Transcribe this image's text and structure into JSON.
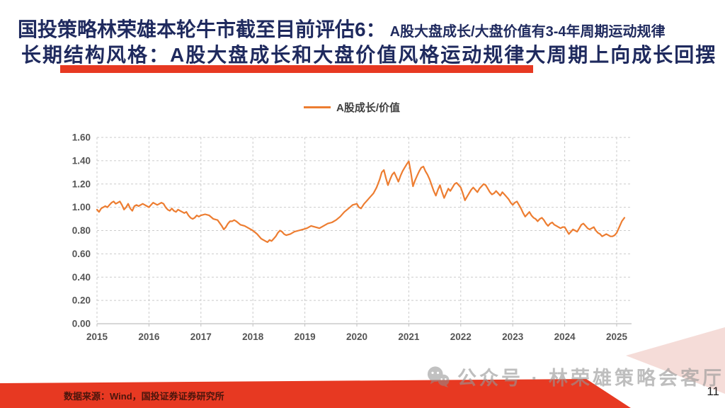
{
  "header": {
    "title_main": "国投策略林荣雄本轮牛市截至目前评估6：",
    "title_annot": "A股大盘成长/大盘价值有3-4年周期运动规律",
    "title_line2": "长期结构风格：A股大盘成长和大盘价值风格运动规律大周期上向成长回摆"
  },
  "chart_data": {
    "type": "line",
    "title": "",
    "legend": [
      "A股成长/价值"
    ],
    "legend_position": "top-center",
    "grid": true,
    "xlabel": "",
    "ylabel": "",
    "x_ticks": [
      "2015",
      "2016",
      "2017",
      "2018",
      "2019",
      "2020",
      "2021",
      "2022",
      "2023",
      "2024",
      "2025"
    ],
    "y_ticks": [
      "0.00",
      "0.20",
      "0.40",
      "0.60",
      "0.80",
      "1.00",
      "1.20",
      "1.40",
      "1.60"
    ],
    "x_range": [
      2015,
      2025
    ],
    "ylim": [
      0,
      1.6
    ],
    "series": [
      {
        "name": "A股成长/价值",
        "color": "#ED7D31",
        "points": [
          [
            2015.0,
            0.98
          ],
          [
            2015.04,
            0.96
          ],
          [
            2015.08,
            0.99
          ],
          [
            2015.12,
            1.0
          ],
          [
            2015.16,
            1.01
          ],
          [
            2015.2,
            1.0
          ],
          [
            2015.24,
            1.02
          ],
          [
            2015.28,
            1.04
          ],
          [
            2015.32,
            1.05
          ],
          [
            2015.36,
            1.03
          ],
          [
            2015.4,
            1.04
          ],
          [
            2015.44,
            1.05
          ],
          [
            2015.48,
            1.02
          ],
          [
            2015.52,
            0.98
          ],
          [
            2015.56,
            1.0
          ],
          [
            2015.6,
            1.03
          ],
          [
            2015.64,
            0.99
          ],
          [
            2015.68,
            0.97
          ],
          [
            2015.72,
            1.01
          ],
          [
            2015.76,
            1.02
          ],
          [
            2015.8,
            1.01
          ],
          [
            2015.84,
            1.02
          ],
          [
            2015.88,
            1.03
          ],
          [
            2015.92,
            1.02
          ],
          [
            2015.96,
            1.01
          ],
          [
            2016.0,
            1.0
          ],
          [
            2016.04,
            1.02
          ],
          [
            2016.08,
            1.04
          ],
          [
            2016.12,
            1.03
          ],
          [
            2016.16,
            1.02
          ],
          [
            2016.2,
            1.03
          ],
          [
            2016.24,
            1.04
          ],
          [
            2016.28,
            1.03
          ],
          [
            2016.32,
            1.0
          ],
          [
            2016.36,
            0.98
          ],
          [
            2016.4,
            0.97
          ],
          [
            2016.44,
            0.99
          ],
          [
            2016.48,
            0.97
          ],
          [
            2016.52,
            0.96
          ],
          [
            2016.56,
            0.98
          ],
          [
            2016.6,
            0.97
          ],
          [
            2016.64,
            0.96
          ],
          [
            2016.68,
            0.95
          ],
          [
            2016.72,
            0.96
          ],
          [
            2016.76,
            0.93
          ],
          [
            2016.8,
            0.91
          ],
          [
            2016.84,
            0.9
          ],
          [
            2016.88,
            0.91
          ],
          [
            2016.92,
            0.93
          ],
          [
            2016.96,
            0.92
          ],
          [
            2017.0,
            0.93
          ],
          [
            2017.08,
            0.94
          ],
          [
            2017.16,
            0.93
          ],
          [
            2017.24,
            0.9
          ],
          [
            2017.32,
            0.89
          ],
          [
            2017.4,
            0.84
          ],
          [
            2017.44,
            0.81
          ],
          [
            2017.48,
            0.83
          ],
          [
            2017.52,
            0.86
          ],
          [
            2017.56,
            0.88
          ],
          [
            2017.6,
            0.88
          ],
          [
            2017.64,
            0.89
          ],
          [
            2017.68,
            0.88
          ],
          [
            2017.76,
            0.85
          ],
          [
            2017.84,
            0.84
          ],
          [
            2017.92,
            0.82
          ],
          [
            2018.0,
            0.8
          ],
          [
            2018.08,
            0.77
          ],
          [
            2018.16,
            0.73
          ],
          [
            2018.24,
            0.71
          ],
          [
            2018.28,
            0.7
          ],
          [
            2018.32,
            0.72
          ],
          [
            2018.36,
            0.71
          ],
          [
            2018.4,
            0.73
          ],
          [
            2018.44,
            0.75
          ],
          [
            2018.48,
            0.78
          ],
          [
            2018.52,
            0.8
          ],
          [
            2018.56,
            0.79
          ],
          [
            2018.6,
            0.77
          ],
          [
            2018.64,
            0.76
          ],
          [
            2018.72,
            0.77
          ],
          [
            2018.8,
            0.79
          ],
          [
            2018.88,
            0.8
          ],
          [
            2018.96,
            0.81
          ],
          [
            2019.04,
            0.82
          ],
          [
            2019.12,
            0.84
          ],
          [
            2019.2,
            0.83
          ],
          [
            2019.28,
            0.82
          ],
          [
            2019.36,
            0.84
          ],
          [
            2019.44,
            0.86
          ],
          [
            2019.52,
            0.87
          ],
          [
            2019.6,
            0.89
          ],
          [
            2019.68,
            0.92
          ],
          [
            2019.76,
            0.96
          ],
          [
            2019.84,
            0.99
          ],
          [
            2019.92,
            1.02
          ],
          [
            2020.0,
            1.03
          ],
          [
            2020.04,
            1.0
          ],
          [
            2020.08,
            0.99
          ],
          [
            2020.14,
            1.03
          ],
          [
            2020.2,
            1.06
          ],
          [
            2020.26,
            1.09
          ],
          [
            2020.32,
            1.12
          ],
          [
            2020.38,
            1.17
          ],
          [
            2020.44,
            1.24
          ],
          [
            2020.48,
            1.3
          ],
          [
            2020.52,
            1.32
          ],
          [
            2020.56,
            1.25
          ],
          [
            2020.6,
            1.19
          ],
          [
            2020.64,
            1.24
          ],
          [
            2020.68,
            1.28
          ],
          [
            2020.72,
            1.3
          ],
          [
            2020.76,
            1.26
          ],
          [
            2020.8,
            1.22
          ],
          [
            2020.84,
            1.27
          ],
          [
            2020.88,
            1.31
          ],
          [
            2020.92,
            1.34
          ],
          [
            2020.96,
            1.37
          ],
          [
            2021.0,
            1.395
          ],
          [
            2021.04,
            1.3
          ],
          [
            2021.08,
            1.18
          ],
          [
            2021.12,
            1.23
          ],
          [
            2021.16,
            1.27
          ],
          [
            2021.2,
            1.31
          ],
          [
            2021.24,
            1.34
          ],
          [
            2021.28,
            1.35
          ],
          [
            2021.32,
            1.31
          ],
          [
            2021.36,
            1.28
          ],
          [
            2021.4,
            1.24
          ],
          [
            2021.44,
            1.19
          ],
          [
            2021.48,
            1.14
          ],
          [
            2021.52,
            1.1
          ],
          [
            2021.56,
            1.15
          ],
          [
            2021.6,
            1.19
          ],
          [
            2021.64,
            1.13
          ],
          [
            2021.68,
            1.08
          ],
          [
            2021.72,
            1.12
          ],
          [
            2021.76,
            1.16
          ],
          [
            2021.8,
            1.14
          ],
          [
            2021.84,
            1.17
          ],
          [
            2021.88,
            1.2
          ],
          [
            2021.92,
            1.21
          ],
          [
            2021.96,
            1.19
          ],
          [
            2022.0,
            1.17
          ],
          [
            2022.04,
            1.12
          ],
          [
            2022.08,
            1.06
          ],
          [
            2022.12,
            1.09
          ],
          [
            2022.16,
            1.12
          ],
          [
            2022.2,
            1.15
          ],
          [
            2022.24,
            1.17
          ],
          [
            2022.28,
            1.15
          ],
          [
            2022.32,
            1.13
          ],
          [
            2022.36,
            1.16
          ],
          [
            2022.4,
            1.18
          ],
          [
            2022.44,
            1.2
          ],
          [
            2022.48,
            1.19
          ],
          [
            2022.52,
            1.16
          ],
          [
            2022.56,
            1.13
          ],
          [
            2022.6,
            1.11
          ],
          [
            2022.64,
            1.12
          ],
          [
            2022.68,
            1.14
          ],
          [
            2022.72,
            1.12
          ],
          [
            2022.76,
            1.1
          ],
          [
            2022.8,
            1.13
          ],
          [
            2022.84,
            1.11
          ],
          [
            2022.88,
            1.09
          ],
          [
            2022.92,
            1.07
          ],
          [
            2022.96,
            1.04
          ],
          [
            2023.0,
            1.02
          ],
          [
            2023.04,
            1.04
          ],
          [
            2023.08,
            1.05
          ],
          [
            2023.12,
            1.02
          ],
          [
            2023.16,
            0.99
          ],
          [
            2023.2,
            0.95
          ],
          [
            2023.24,
            0.92
          ],
          [
            2023.28,
            0.94
          ],
          [
            2023.32,
            0.96
          ],
          [
            2023.36,
            0.93
          ],
          [
            2023.4,
            0.91
          ],
          [
            2023.44,
            0.9
          ],
          [
            2023.48,
            0.88
          ],
          [
            2023.52,
            0.9
          ],
          [
            2023.56,
            0.91
          ],
          [
            2023.6,
            0.89
          ],
          [
            2023.64,
            0.86
          ],
          [
            2023.68,
            0.84
          ],
          [
            2023.72,
            0.86
          ],
          [
            2023.76,
            0.87
          ],
          [
            2023.8,
            0.85
          ],
          [
            2023.84,
            0.84
          ],
          [
            2023.88,
            0.83
          ],
          [
            2023.92,
            0.82
          ],
          [
            2023.96,
            0.83
          ],
          [
            2024.0,
            0.83
          ],
          [
            2024.04,
            0.8
          ],
          [
            2024.08,
            0.77
          ],
          [
            2024.12,
            0.79
          ],
          [
            2024.16,
            0.81
          ],
          [
            2024.2,
            0.8
          ],
          [
            2024.24,
            0.79
          ],
          [
            2024.28,
            0.82
          ],
          [
            2024.32,
            0.85
          ],
          [
            2024.36,
            0.86
          ],
          [
            2024.4,
            0.84
          ],
          [
            2024.44,
            0.82
          ],
          [
            2024.48,
            0.81
          ],
          [
            2024.52,
            0.82
          ],
          [
            2024.56,
            0.83
          ],
          [
            2024.6,
            0.8
          ],
          [
            2024.64,
            0.78
          ],
          [
            2024.68,
            0.77
          ],
          [
            2024.72,
            0.75
          ],
          [
            2024.76,
            0.76
          ],
          [
            2024.8,
            0.77
          ],
          [
            2024.84,
            0.76
          ],
          [
            2024.88,
            0.75
          ],
          [
            2024.92,
            0.75
          ],
          [
            2024.96,
            0.76
          ],
          [
            2025.0,
            0.78
          ],
          [
            2025.05,
            0.83
          ],
          [
            2025.1,
            0.88
          ],
          [
            2025.15,
            0.91
          ]
        ]
      }
    ]
  },
  "footer": {
    "source_text": "数据来源：Wind，国投证券证券研究所",
    "watermark": "公众号 · 林荣雄策略会客厅",
    "page_number": "11"
  },
  "colors": {
    "title_navy": "#1F2A5E",
    "accent_red": "#E73922",
    "line_orange": "#ED7D31",
    "pink_accent": "#F5DCD8",
    "grid_gray": "#CBCBCB",
    "axis_line_gray": "#BFBFBF",
    "axis_label_gray": "#555555"
  }
}
